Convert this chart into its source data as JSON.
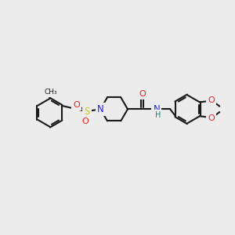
{
  "bg": "#ececec",
  "C": "#1a1a1a",
  "N": "#2020ee",
  "O": "#ee2020",
  "S": "#cccc00",
  "H": "#008b8b",
  "lw": 1.5,
  "fs": 7.0,
  "dpi": 100,
  "figsize": [
    3.0,
    3.0
  ],
  "xlim": [
    -1.5,
    10.5
  ],
  "ylim": [
    2.0,
    8.5
  ]
}
